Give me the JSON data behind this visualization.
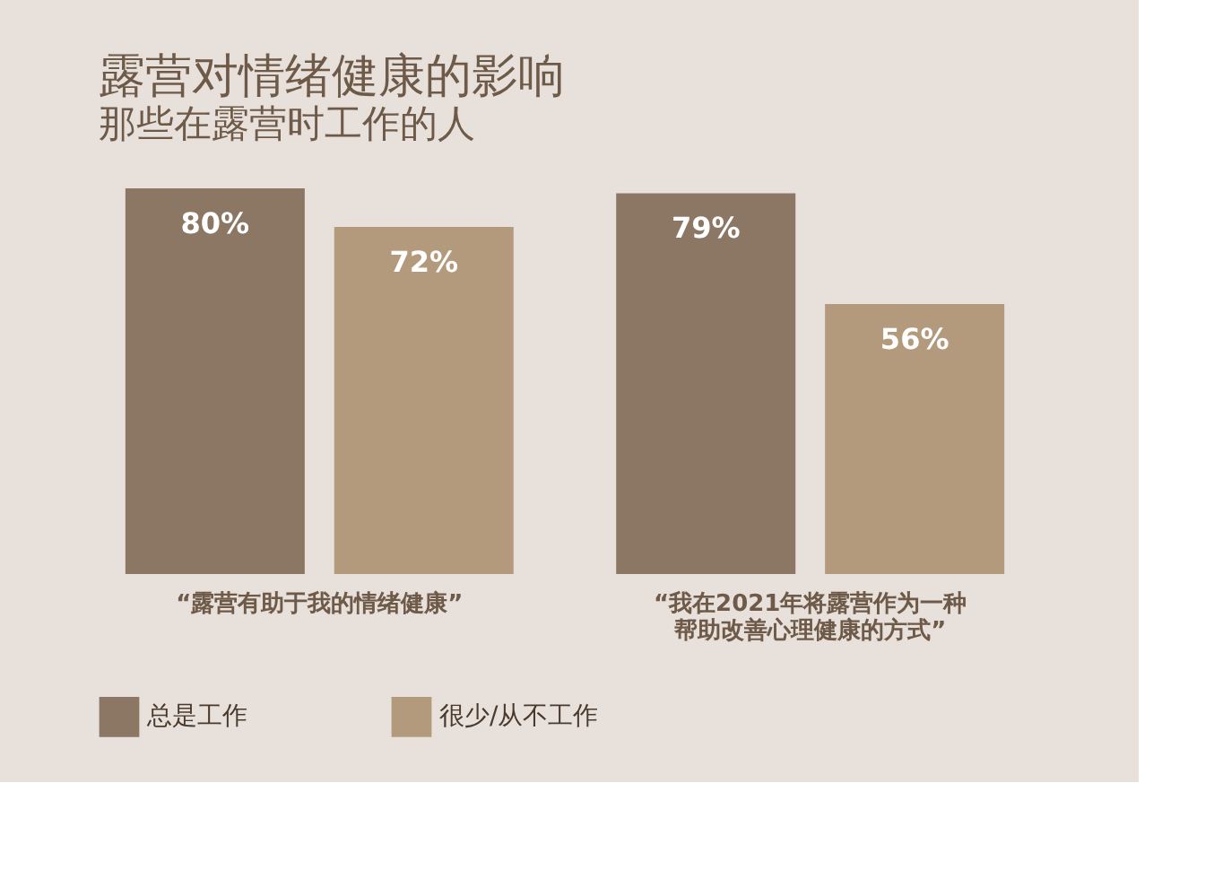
{
  "chart_data": {
    "type": "bar",
    "title": "露营对情绪健康的影响",
    "subtitle": "那些在露营时工作的人",
    "categories": [
      "“露营有助于我的情绪健康”",
      "“我在2021年将露营作为一种帮助改善心理健康的方式”"
    ],
    "series": [
      {
        "name": "总是工作",
        "color": "#8b7763",
        "values": [
          80,
          79
        ],
        "value_labels": [
          "80%",
          "79%"
        ]
      },
      {
        "name": "很少/从不工作",
        "color": "#b39a7c",
        "values": [
          72,
          56
        ],
        "value_labels": [
          "72%",
          "56%"
        ]
      }
    ],
    "legend": "bottom left"
  }
}
